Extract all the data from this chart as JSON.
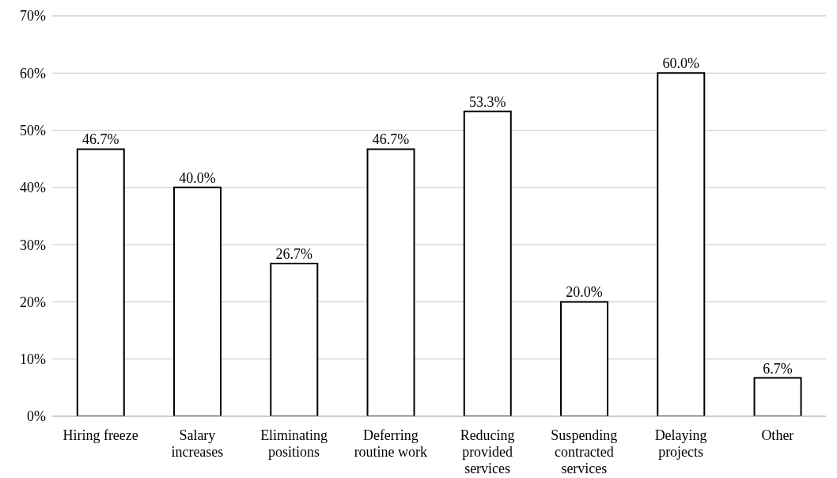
{
  "chart_data": {
    "type": "bar",
    "categories": [
      "Hiring freeze",
      "Salary increases",
      "Eliminating positions",
      "Deferring routine work",
      "Reducing provided services",
      "Suspending contracted services",
      "Delaying projects",
      "Other"
    ],
    "values": [
      46.7,
      40.0,
      26.7,
      46.7,
      53.3,
      20.0,
      60.0,
      6.7
    ],
    "value_labels": [
      "46.7%",
      "40.0%",
      "26.7%",
      "46.7%",
      "53.3%",
      "20.0%",
      "60.0%",
      "6.7%"
    ],
    "color": "#ffffff",
    "ylim": [
      0,
      70
    ],
    "yticks": [
      {
        "value": 0,
        "label": "0%"
      },
      {
        "value": 10,
        "label": "10%"
      },
      {
        "value": 20,
        "label": "20%"
      },
      {
        "value": 30,
        "label": "30%"
      },
      {
        "value": 40,
        "label": "40%"
      },
      {
        "value": 50,
        "label": "50%"
      },
      {
        "value": 60,
        "label": "60%"
      },
      {
        "value": 70,
        "label": "70%"
      }
    ],
    "grid": "y"
  }
}
